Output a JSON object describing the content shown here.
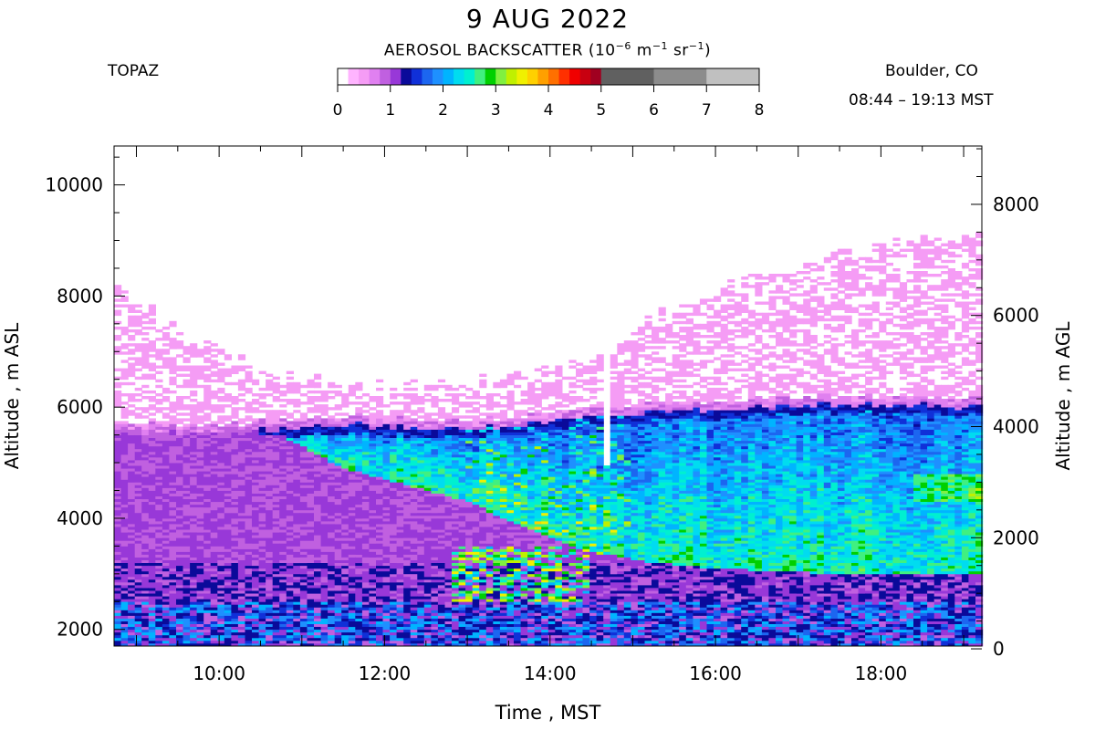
{
  "header": {
    "title": "9 AUG 2022",
    "instrument": "TOPAZ",
    "location": "Boulder, CO",
    "time_range": "08:44 – 19:13 MST",
    "colorbar_title_prefix": "AEROSOL BACKSCATTER (10",
    "colorbar_exp1": "−6",
    "colorbar_mid1": " m",
    "colorbar_exp2": "−1",
    "colorbar_mid2": " sr",
    "colorbar_exp3": "−1",
    "colorbar_suffix": ")"
  },
  "colorbar": {
    "ticks": [
      "0",
      "1",
      "2",
      "3",
      "4",
      "5",
      "6",
      "7",
      "8"
    ],
    "segments": [
      {
        "from": 0.0,
        "to": 0.2,
        "color": "#ffffff"
      },
      {
        "from": 0.2,
        "to": 0.4,
        "color": "#ffb4ff"
      },
      {
        "from": 0.4,
        "to": 0.6,
        "color": "#f59cf5"
      },
      {
        "from": 0.6,
        "to": 0.8,
        "color": "#e080f0"
      },
      {
        "from": 0.8,
        "to": 1.0,
        "color": "#c060e0"
      },
      {
        "from": 1.0,
        "to": 1.2,
        "color": "#9838d8"
      },
      {
        "from": 1.2,
        "to": 1.4,
        "color": "#0a0a9a"
      },
      {
        "from": 1.4,
        "to": 1.6,
        "color": "#1030d8"
      },
      {
        "from": 1.6,
        "to": 1.8,
        "color": "#1c66f0"
      },
      {
        "from": 1.8,
        "to": 2.0,
        "color": "#1e90ff"
      },
      {
        "from": 2.0,
        "to": 2.2,
        "color": "#00b4ff"
      },
      {
        "from": 2.2,
        "to": 2.4,
        "color": "#00dcf0"
      },
      {
        "from": 2.4,
        "to": 2.6,
        "color": "#00f0d0"
      },
      {
        "from": 2.6,
        "to": 2.8,
        "color": "#40f080"
      },
      {
        "from": 2.8,
        "to": 3.0,
        "color": "#00d000"
      },
      {
        "from": 3.0,
        "to": 3.2,
        "color": "#80f040"
      },
      {
        "from": 3.2,
        "to": 3.4,
        "color": "#c0f000"
      },
      {
        "from": 3.4,
        "to": 3.6,
        "color": "#f0f000"
      },
      {
        "from": 3.6,
        "to": 3.8,
        "color": "#ffd000"
      },
      {
        "from": 3.8,
        "to": 4.0,
        "color": "#ffa000"
      },
      {
        "from": 4.0,
        "to": 4.2,
        "color": "#ff7000"
      },
      {
        "from": 4.2,
        "to": 4.4,
        "color": "#ff3000"
      },
      {
        "from": 4.4,
        "to": 4.6,
        "color": "#f00000"
      },
      {
        "from": 4.6,
        "to": 4.8,
        "color": "#c80010"
      },
      {
        "from": 4.8,
        "to": 5.0,
        "color": "#a00020"
      },
      {
        "from": 5.0,
        "to": 6.0,
        "color": "#606060"
      },
      {
        "from": 6.0,
        "to": 7.0,
        "color": "#8c8c8c"
      },
      {
        "from": 7.0,
        "to": 8.0,
        "color": "#c0c0c0"
      }
    ]
  },
  "chart_data": {
    "type": "heatmap",
    "xlabel": "Time , MST",
    "ylabel_left": "Altitude , m ASL",
    "ylabel_right": "Altitude , m AGL",
    "x_range_hours": [
      8.73,
      19.22
    ],
    "x_ticks": [
      "10:00",
      "12:00",
      "14:00",
      "16:00",
      "18:00"
    ],
    "y_left_range": [
      1700,
      10700
    ],
    "y_left_ticks": [
      2000,
      4000,
      6000,
      8000,
      10000
    ],
    "y_right_ticks": [
      0,
      2000,
      4000,
      6000,
      8000
    ],
    "ground_altitude_m": 1650,
    "cell_hours": 0.0833,
    "cell_m": 50,
    "profiles": [
      {
        "t": 8.75,
        "dense_top": 5550,
        "aerosol_top": 8300,
        "layer_base": null
      },
      {
        "t": 9.5,
        "dense_top": 5550,
        "aerosol_top": 7300,
        "layer_base": null
      },
      {
        "t": 10.25,
        "dense_top": 5550,
        "aerosol_top": 6850,
        "layer_base": null
      },
      {
        "t": 10.75,
        "dense_top": 5600,
        "aerosol_top": 6550,
        "layer_base": 5500
      },
      {
        "t": 11.5,
        "dense_top": 5700,
        "aerosol_top": 6400,
        "layer_base": 4900
      },
      {
        "t": 12.25,
        "dense_top": 5650,
        "aerosol_top": 6350,
        "layer_base": 4600
      },
      {
        "t": 13.0,
        "dense_top": 5600,
        "aerosol_top": 6400,
        "layer_base": 4300
      },
      {
        "t": 13.75,
        "dense_top": 5700,
        "aerosol_top": 6600,
        "layer_base": 3800
      },
      {
        "t": 14.5,
        "dense_top": 5800,
        "aerosol_top": 6800,
        "layer_base": 3400
      },
      {
        "t": 15.25,
        "dense_top": 5900,
        "aerosol_top": 7600,
        "layer_base": 3200
      },
      {
        "t": 16.0,
        "dense_top": 5950,
        "aerosol_top": 8100,
        "layer_base": 3100
      },
      {
        "t": 16.75,
        "dense_top": 6000,
        "aerosol_top": 8450,
        "layer_base": 3050
      },
      {
        "t": 17.5,
        "dense_top": 6050,
        "aerosol_top": 8750,
        "layer_base": 3000
      },
      {
        "t": 18.25,
        "dense_top": 6050,
        "aerosol_top": 8950,
        "layer_base": 3000
      },
      {
        "t": 19.2,
        "dense_top": 6000,
        "aerosol_top": 9200,
        "layer_base": 3000
      }
    ],
    "data_gap": {
      "t_from": 14.62,
      "t_to": 14.72,
      "alt_from": 4950,
      "alt_to": 10700
    }
  }
}
